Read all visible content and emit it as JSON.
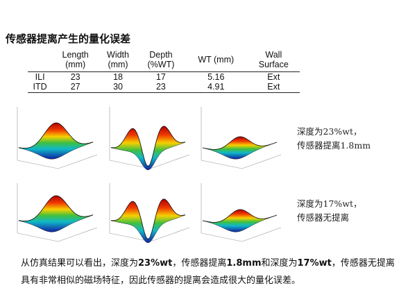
{
  "title": "传感器提离产生的量化误差",
  "table": {
    "header": [
      "",
      "Length\n(mm)",
      "Width\n(mm)",
      "Depth\n(%WT)",
      "WT (mm)",
      "Wall\nSurface"
    ],
    "rows": [
      [
        "ILI",
        "23",
        "18",
        "17",
        "5.16",
        "Ext"
      ],
      [
        "ITD",
        "27",
        "30",
        "23",
        "4.91",
        "Ext"
      ]
    ]
  },
  "captions": [
    [
      "深度为23%wt，",
      "传感器提离1.8mm"
    ],
    [
      "深度为17%wt，",
      "传感器无提离"
    ]
  ],
  "paragraph": [
    {
      "text": "从仿真结果可以看出，深度为",
      "bold": false
    },
    {
      "text": "23%wt",
      "bold": true
    },
    {
      "text": "，传感器提离",
      "bold": false
    },
    {
      "text": "1.8mm",
      "bold": true
    },
    {
      "text": "和深度为",
      "bold": false
    },
    {
      "text": "17%wt",
      "bold": true
    },
    {
      "text": "，传感器无提离具有非常相似的磁场特征，因此传感器的提离会造成很大的量化误差。",
      "bold": false
    }
  ]
}
